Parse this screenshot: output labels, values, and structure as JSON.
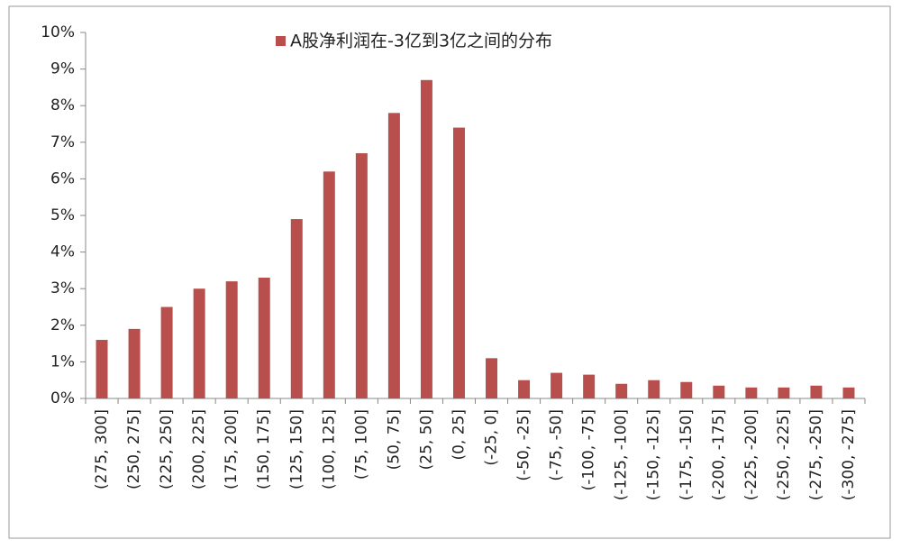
{
  "chart_data": {
    "type": "bar",
    "categories": [
      "(275, 300]",
      "(250, 275]",
      "(225, 250]",
      "(200, 225]",
      "(175, 200]",
      "(150, 175]",
      "(125, 150]",
      "(100, 125]",
      "(75, 100]",
      "(50, 75]",
      "(25, 50]",
      "(0, 25]",
      "(-25, 0]",
      "(-50, -25]",
      "(-75, -50]",
      "(-100, -75]",
      "(-125, -100]",
      "(-150, -125]",
      "(-175, -150]",
      "(-200, -175]",
      "(-225, -200]",
      "(-250, -225]",
      "(-275, -250]",
      "(-300, -275]"
    ],
    "series": [
      {
        "name": "A股净利润在-3亿到3亿之间的分布",
        "color": "#b84f4c",
        "values": [
          1.6,
          1.9,
          2.5,
          3.0,
          3.2,
          3.3,
          4.9,
          6.2,
          6.7,
          7.8,
          8.7,
          7.4,
          1.1,
          0.5,
          0.7,
          0.65,
          0.4,
          0.5,
          0.45,
          0.35,
          0.3,
          0.3,
          0.35,
          0.3
        ]
      }
    ],
    "ylim": [
      0,
      10
    ],
    "yticks": [
      {
        "value": 0,
        "label": "0%"
      },
      {
        "value": 1,
        "label": "1%"
      },
      {
        "value": 2,
        "label": "2%"
      },
      {
        "value": 3,
        "label": "3%"
      },
      {
        "value": 4,
        "label": "4%"
      },
      {
        "value": 5,
        "label": "5%"
      },
      {
        "value": 6,
        "label": "6%"
      },
      {
        "value": 7,
        "label": "7%"
      },
      {
        "value": 8,
        "label": "8%"
      },
      {
        "value": 9,
        "label": "9%"
      },
      {
        "value": 10,
        "label": "10%"
      }
    ],
    "grid": false,
    "legend": "top"
  }
}
